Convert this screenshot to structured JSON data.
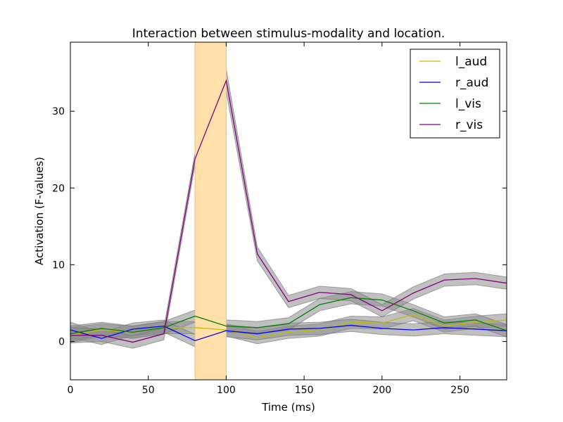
{
  "chart_data": {
    "type": "line",
    "title": "Interaction between stimulus-modality and location.",
    "xlabel": "Time (ms)",
    "ylabel": "Activation (F-values)",
    "xlim": [
      0,
      280
    ],
    "ylim": [
      -5,
      39
    ],
    "xticks": [
      0,
      50,
      100,
      150,
      200,
      250
    ],
    "yticks": [
      0,
      10,
      20,
      30
    ],
    "grid": false,
    "legend": "top-right",
    "highlight_band": {
      "x_start": 80,
      "x_end": 100,
      "color": "#ffe0a8"
    },
    "band_color": "#8c8c8c",
    "x": [
      0,
      20,
      40,
      60,
      80,
      100,
      120,
      140,
      160,
      180,
      200,
      220,
      240,
      260,
      280
    ],
    "series": [
      {
        "name": "l_aud",
        "color": "#bfbf00",
        "values": [
          0.8,
          1.5,
          1.2,
          1.8,
          1.8,
          1.5,
          0.5,
          1.2,
          1.5,
          2.5,
          2.4,
          3.5,
          2.0,
          2.5,
          2.8
        ],
        "error": [
          1.0,
          0.8,
          0.8,
          0.8,
          0.8,
          0.8,
          0.8,
          0.8,
          0.8,
          0.8,
          0.8,
          0.8,
          0.8,
          0.8,
          0.8
        ]
      },
      {
        "name": "r_aud",
        "color": "#0000ff",
        "values": [
          1.5,
          0.4,
          1.6,
          2.0,
          0.1,
          1.4,
          1.0,
          1.6,
          1.7,
          2.1,
          1.7,
          1.5,
          1.8,
          1.6,
          1.4
        ],
        "error": [
          1.0,
          0.8,
          0.8,
          0.8,
          0.8,
          0.8,
          0.8,
          0.8,
          0.8,
          0.8,
          0.8,
          0.8,
          0.8,
          0.8,
          0.8
        ]
      },
      {
        "name": "l_vis",
        "color": "#008000",
        "values": [
          1.0,
          1.7,
          1.2,
          1.8,
          3.3,
          2.0,
          1.8,
          2.3,
          4.8,
          5.7,
          5.4,
          4.0,
          2.4,
          2.8,
          1.4
        ],
        "error": [
          1.0,
          0.8,
          0.8,
          0.8,
          0.8,
          0.8,
          0.8,
          0.8,
          0.8,
          0.8,
          0.8,
          0.8,
          0.8,
          0.8,
          0.8
        ]
      },
      {
        "name": "r_vis",
        "color": "#800080",
        "values": [
          0.8,
          0.8,
          -0.1,
          1.0,
          23.8,
          34.0,
          11.4,
          5.2,
          6.4,
          6.1,
          4.0,
          6.3,
          8.0,
          8.2,
          7.6
        ],
        "error": [
          1.0,
          0.8,
          0.8,
          0.8,
          0.8,
          1.5,
          0.9,
          0.8,
          0.8,
          0.8,
          0.8,
          0.8,
          0.8,
          0.8,
          0.8
        ]
      }
    ]
  }
}
